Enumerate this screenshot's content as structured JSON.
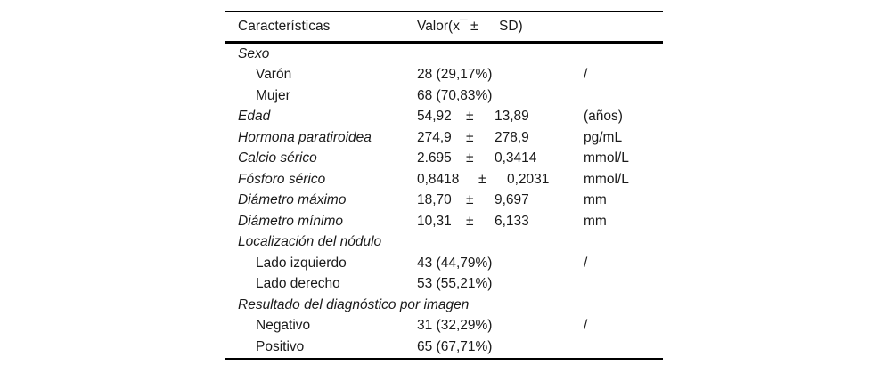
{
  "table": {
    "header": {
      "characteristics": "Características",
      "value_mean": "Valor(x¯",
      "value_pm": "±",
      "value_sd": "SD)"
    },
    "rows": [
      {
        "label": "Sexo"
      },
      {
        "label": "Varón",
        "value": "28 (29,17%)",
        "unit": "/"
      },
      {
        "label": "Mujer",
        "value": "68 (70,83%)",
        "unit": ""
      },
      {
        "label": "Edad",
        "mean": "54,92",
        "pm": "±",
        "sd": "13,89",
        "unit": "(años)"
      },
      {
        "label": "Hormona paratiroidea",
        "mean": "274,9",
        "pm": "±",
        "sd": "278,9",
        "unit": "pg/mL"
      },
      {
        "label": "Calcio sérico",
        "mean": "2.695",
        "pm": "±",
        "sd": "0,3414",
        "unit": "mmol/L"
      },
      {
        "label": "Fósforo sérico",
        "mean": "0,8418",
        "pm": "±",
        "sd": "0,2031",
        "unit": "mmol/L"
      },
      {
        "label": "Diámetro máximo",
        "mean": "18,70",
        "pm": "±",
        "sd": "9,697",
        "unit": "mm"
      },
      {
        "label": "Diámetro mínimo",
        "mean": "10,31",
        "pm": "±",
        "sd": "6,133",
        "unit": "mm"
      },
      {
        "label": "Localización del nódulo"
      },
      {
        "label": "Lado izquierdo",
        "value": "43 (44,79%)",
        "unit": "/"
      },
      {
        "label": "Lado derecho",
        "value": "53 (55,21%)",
        "unit": ""
      },
      {
        "label": "Resultado del diagnóstico por imagen"
      },
      {
        "label": "Negativo",
        "value": "31 (32,29%)",
        "unit": "/"
      },
      {
        "label": "Positivo",
        "value": "65 (67,71%)",
        "unit": ""
      }
    ]
  },
  "colors": {
    "text": "#1a1a1a",
    "rule": "#000000",
    "background": "#ffffff"
  }
}
